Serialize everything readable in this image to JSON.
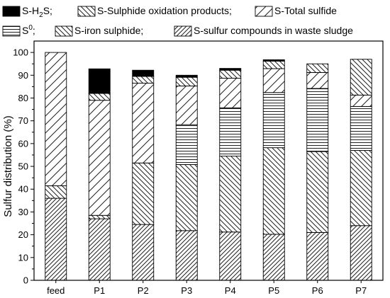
{
  "chart_data": {
    "type": "bar",
    "stacked": true,
    "ylabel": "Sulfur distribution (%)",
    "xlabel": "",
    "ylim": [
      0,
      105
    ],
    "yticks": [
      0,
      10,
      20,
      30,
      40,
      50,
      60,
      70,
      80,
      90,
      100
    ],
    "categories": [
      "feed",
      "P1",
      "P2",
      "P3",
      "P4",
      "P5",
      "P6",
      "P7"
    ],
    "legend_placement": "top",
    "series": [
      {
        "name": "S-sulfur compounds in waste sludge",
        "pattern": "diag-dense",
        "values": [
          36,
          27,
          24.5,
          21.8,
          21.2,
          20.2,
          21,
          24
        ]
      },
      {
        "name": "S-iron sulphide",
        "pattern": "backdiag",
        "values": [
          0,
          0,
          27,
          29,
          33.3,
          38,
          35.5,
          33
        ]
      },
      {
        "name": "S-Sulphide oxidation products",
        "pattern": "backdiag",
        "values": [
          5.5,
          1.5,
          0,
          0,
          0,
          0,
          0,
          0
        ]
      },
      {
        "name": "S0",
        "pattern": "hlines",
        "values": [
          0,
          0,
          0,
          17.5,
          21.2,
          24.2,
          27.7,
          19.3
        ]
      },
      {
        "name": "S-Total sulfide",
        "pattern": "diag-wide",
        "values": [
          58.5,
          50.5,
          35,
          17,
          13,
          10.5,
          7,
          5
        ]
      },
      {
        "name": "S-Sulphide oxidation products",
        "pattern": "backdiag",
        "values": [
          0,
          3,
          3,
          3.8,
          3.5,
          3.3,
          3.8,
          15.7
        ]
      },
      {
        "name": "S-H2S",
        "pattern": "solid",
        "values": [
          0,
          10.8,
          2.7,
          0.9,
          0.8,
          0.6,
          0,
          0
        ]
      }
    ]
  },
  "legend": {
    "row1": [
      {
        "pattern": "solid",
        "parts": [
          {
            "t": "S-H"
          },
          {
            "t": "2",
            "sub": true
          },
          {
            "t": "S;"
          }
        ]
      },
      {
        "pattern": "backdiag",
        "parts": [
          {
            "t": "S-Sulphide oxidation products;"
          }
        ]
      },
      {
        "pattern": "diag-wide",
        "parts": [
          {
            "t": "S-Total sulfide"
          }
        ]
      }
    ],
    "row2": [
      {
        "pattern": "hlines",
        "parts": [
          {
            "t": "S"
          },
          {
            "t": "0",
            "sup": true
          },
          {
            "t": ";"
          }
        ]
      },
      {
        "pattern": "backdiag",
        "parts": [
          {
            "t": "S-iron sulphide;"
          }
        ]
      },
      {
        "pattern": "diag-dense",
        "parts": [
          {
            "t": "S-sulfur compounds in waste sludge"
          }
        ]
      }
    ]
  }
}
